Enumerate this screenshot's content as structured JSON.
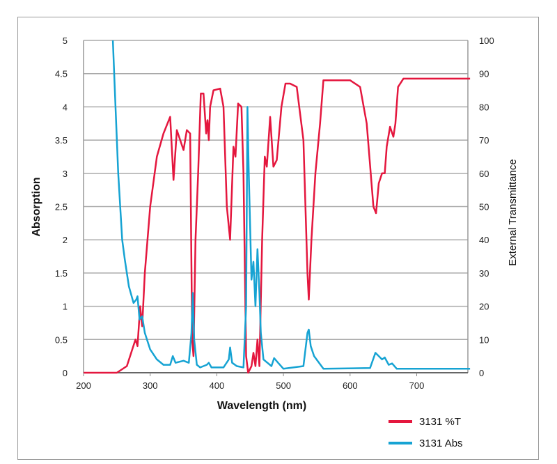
{
  "chart_data": {
    "type": "line",
    "xlabel": "Wavelength (nm)",
    "ylabel": "Absorption",
    "y2label": "External Transmittance",
    "xlim": [
      200,
      780
    ],
    "ylim": [
      0,
      5
    ],
    "y2lim": [
      0,
      100
    ],
    "grid": true,
    "legend_position": "bottom-right",
    "xticks": [
      "200",
      "300",
      "400",
      "500",
      "600",
      "700"
    ],
    "yticks": [
      "0",
      "0.5",
      "1",
      "1.5",
      "2",
      "2.5",
      "3",
      "3.5",
      "4",
      "4.5",
      "5"
    ],
    "y2ticks": [
      "0",
      "10",
      "20",
      "30",
      "40",
      "50",
      "60",
      "70",
      "80",
      "90",
      "100"
    ],
    "series": [
      {
        "name": "3131 %T",
        "axis": "right",
        "color": "#e4173e",
        "x": [
          200,
          250,
          265,
          278,
          281,
          285,
          288,
          292,
          300,
          310,
          320,
          330,
          335,
          340,
          350,
          355,
          360,
          363,
          365,
          368,
          372,
          376,
          380,
          384,
          386,
          388,
          390,
          395,
          405,
          410,
          415,
          420,
          425,
          428,
          432,
          437,
          440,
          444,
          447,
          452,
          455,
          458,
          461,
          464,
          468,
          472,
          475,
          480,
          485,
          490,
          497,
          503,
          510,
          520,
          530,
          536,
          538,
          542,
          548,
          555,
          560,
          570,
          600,
          615,
          625,
          635,
          639,
          643,
          648,
          652,
          655,
          660,
          665,
          668,
          672,
          680,
          780
        ],
        "y": [
          0,
          0,
          2,
          10,
          8,
          20,
          14,
          30,
          50,
          65,
          72,
          77,
          58,
          73,
          67,
          73,
          72,
          10,
          5,
          40,
          60,
          84,
          84,
          72,
          76,
          70,
          80,
          85,
          85.5,
          80,
          50,
          40,
          68,
          65,
          81,
          80,
          60,
          5,
          0,
          2,
          6,
          2,
          10,
          2,
          40,
          65,
          62,
          77,
          62,
          64,
          80,
          87,
          87,
          86,
          70,
          30,
          22,
          40,
          60,
          75,
          88,
          88,
          88,
          86,
          75,
          50,
          48,
          57,
          60,
          60,
          68,
          74,
          71,
          75,
          86,
          88.5,
          88.5
        ]
      },
      {
        "name": "3131 Abs",
        "axis": "left",
        "color": "#16a3d3",
        "x": [
          244,
          248,
          252,
          258,
          262,
          268,
          275,
          279,
          281,
          284,
          288,
          292,
          300,
          310,
          320,
          330,
          334,
          338,
          350,
          358,
          362,
          364,
          366,
          370,
          375,
          385,
          388,
          392,
          410,
          418,
          420,
          423,
          430,
          440,
          444,
          446,
          448,
          452,
          455,
          458,
          461,
          464,
          466,
          470,
          476,
          482,
          486,
          492,
          500,
          530,
          536,
          538,
          541,
          546,
          560,
          630,
          638,
          643,
          648,
          652,
          658,
          663,
          670,
          780
        ],
        "y": [
          5,
          4,
          3,
          2.0,
          1.7,
          1.3,
          1.05,
          1.1,
          1.15,
          0.8,
          0.85,
          0.6,
          0.35,
          0.2,
          0.12,
          0.12,
          0.25,
          0.15,
          0.18,
          0.15,
          0.6,
          1.2,
          0.5,
          0.12,
          0.08,
          0.12,
          0.15,
          0.08,
          0.08,
          0.2,
          0.38,
          0.15,
          0.1,
          0.08,
          1,
          4,
          3,
          1.4,
          1.67,
          1.0,
          1.86,
          1.2,
          0.6,
          0.2,
          0.15,
          0.1,
          0.22,
          0.15,
          0.06,
          0.1,
          0.6,
          0.65,
          0.4,
          0.25,
          0.06,
          0.07,
          0.3,
          0.25,
          0.2,
          0.23,
          0.12,
          0.14,
          0.06,
          0.06
        ]
      }
    ]
  }
}
